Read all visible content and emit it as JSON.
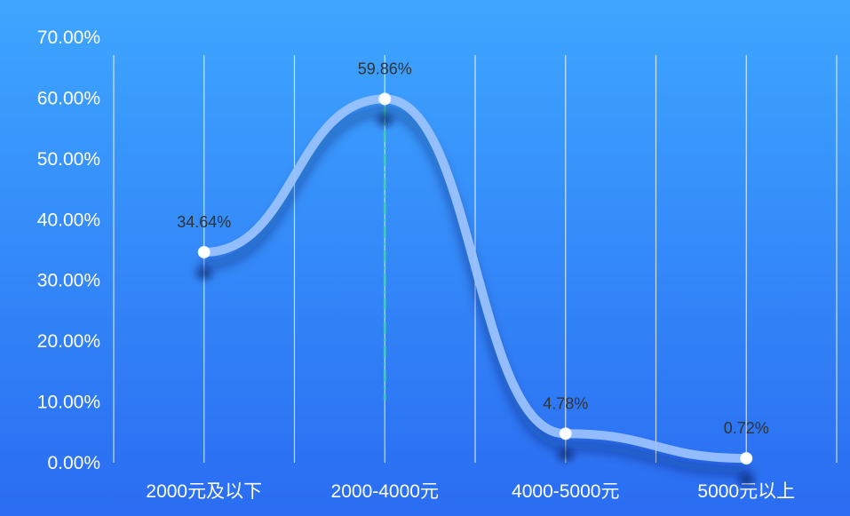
{
  "chart_data": {
    "type": "line",
    "categories": [
      "2000元及以下",
      "2000-4000元",
      "4000-5000元",
      "5000元以上"
    ],
    "values": [
      34.64,
      59.86,
      4.78,
      0.72
    ],
    "data_labels": [
      "34.64%",
      "59.86%",
      "4.78%",
      "0.72%"
    ],
    "y_tick_labels": [
      "0.00%",
      "10.00%",
      "20.00%",
      "30.00%",
      "40.00%",
      "50.00%",
      "60.00%",
      "70.00%"
    ],
    "ylim": [
      0,
      70
    ],
    "smooth": true,
    "grid": "vertical",
    "title": "",
    "xlabel": "",
    "ylabel": ""
  },
  "colors": {
    "background_top": "#3ea6ff",
    "background_bottom": "#2a6cf2",
    "line": "#9dc4ff",
    "marker": "#ffffff",
    "gridline": "#ffffff",
    "axis_text": "#ffffff",
    "data_label": "#333333",
    "highlight_line": "#39c6b2"
  }
}
